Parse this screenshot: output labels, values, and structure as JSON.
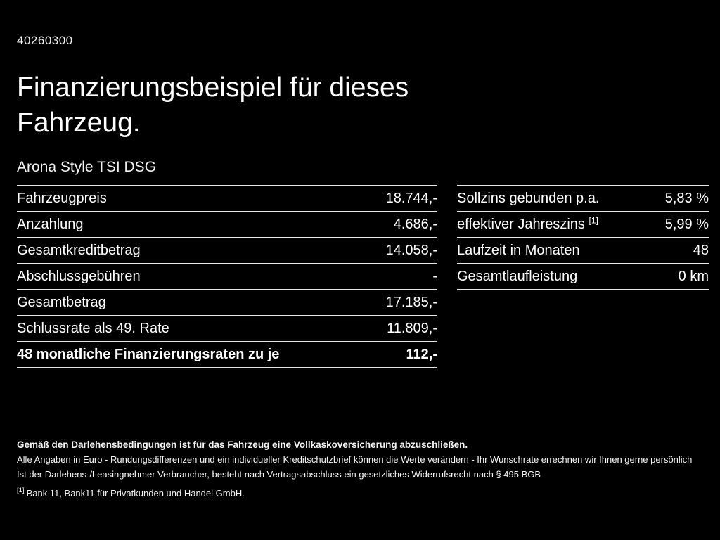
{
  "page": {
    "id": "40260300",
    "title": "Finanzierungsbeispiel für dieses Fahrzeug.",
    "subtitle": "Arona Style TSI DSG"
  },
  "left_table": {
    "rows": [
      {
        "label": "Fahrzeugpreis",
        "value": "18.744,-"
      },
      {
        "label": "Anzahlung",
        "value": "4.686,-"
      },
      {
        "label": "Gesamtkreditbetrag",
        "value": "14.058,-"
      },
      {
        "label": "Abschlussgebühren",
        "value": "-"
      },
      {
        "label": "Gesamtbetrag",
        "value": "17.185,-"
      },
      {
        "label": "Schlussrate als 49. Rate",
        "value": "11.809,-"
      },
      {
        "label": "48 monatliche Finanzierungsraten zu je",
        "value": "112,-"
      }
    ]
  },
  "right_table": {
    "rows": [
      {
        "label": "Sollzins gebunden p.a.",
        "value": "5,83 %"
      },
      {
        "label": "effektiver Jahreszins",
        "sup": "[1]",
        "value": "5,99 %"
      },
      {
        "label": "Laufzeit in Monaten",
        "value": "48"
      },
      {
        "label": "Gesamtlaufleistung",
        "value": "0 km"
      }
    ]
  },
  "footer": {
    "bold_note": "Gemäß den Darlehensbedingungen ist für das Fahrzeug eine Vollkaskoversicherung abzuschließen.",
    "note1": "Alle Angaben in Euro - Rundungsdifferenzen und ein individueller Kreditschutzbrief können die Werte verändern - Ihr Wunschrate errechnen wir Ihnen gerne persönlich",
    "note2": "Ist der Darlehens-/Leasingnehmer Verbraucher, besteht nach Vertragsabschluss ein gesetzliches Widerrufsrecht nach § 495 BGB",
    "footnote_marker": "[1]",
    "footnote_text": "Bank 11, Bank11 für Privatkunden und Handel GmbH."
  }
}
